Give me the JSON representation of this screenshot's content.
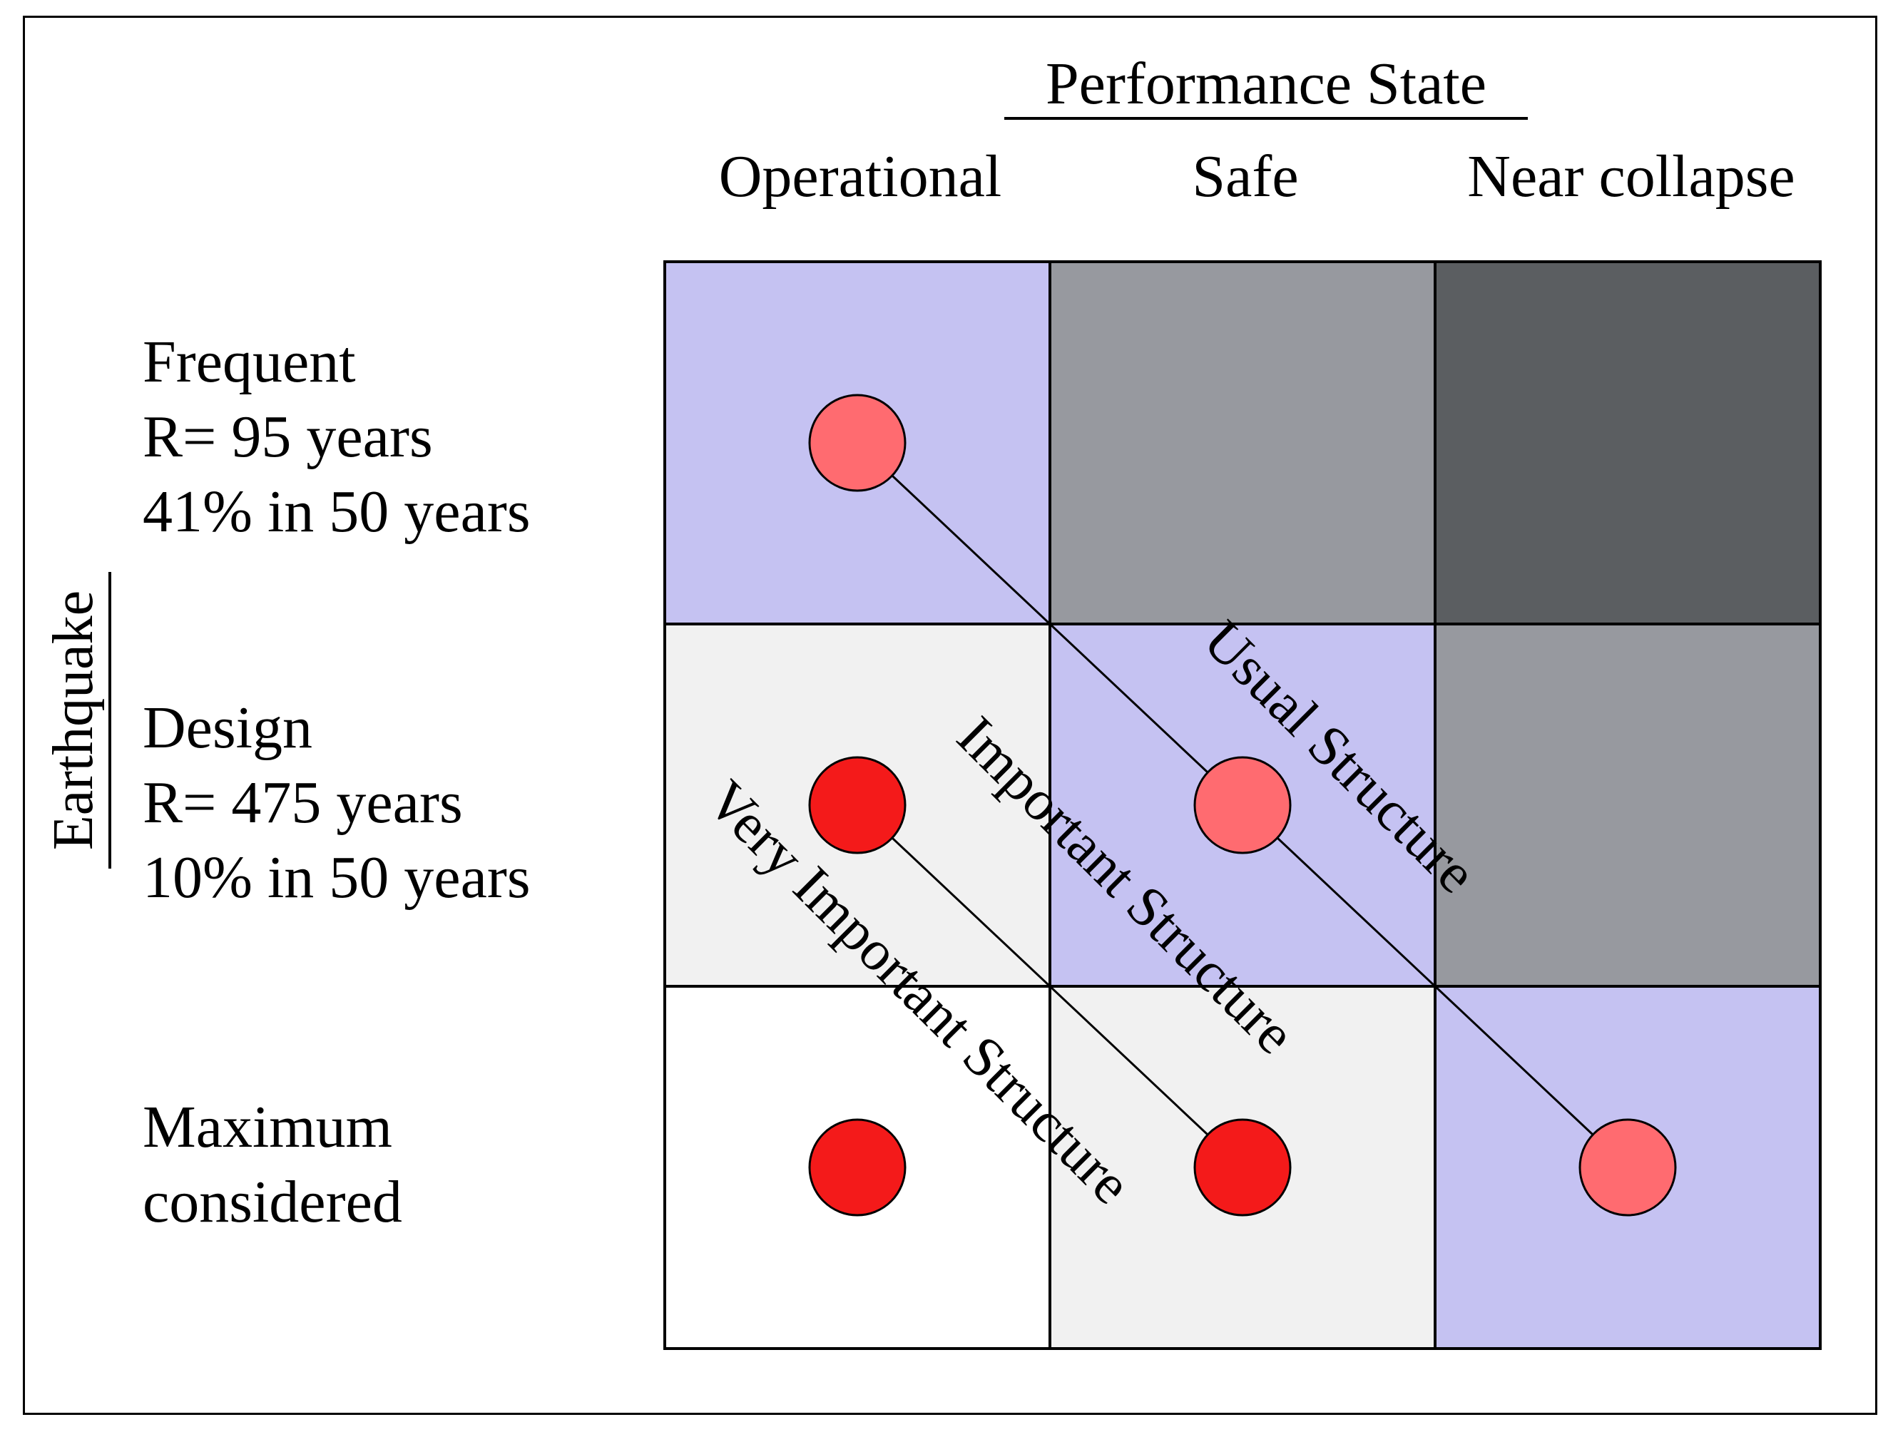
{
  "title": "Performance State",
  "columns": [
    "Operational",
    "Safe",
    "Near collapse"
  ],
  "axis_label": "Earthquake",
  "rows": [
    {
      "lines": [
        "Frequent",
        "R= 95 years",
        "41% in 50 years"
      ]
    },
    {
      "lines": [
        "Design",
        "R= 475 years",
        "10% in 50 years"
      ]
    },
    {
      "lines": [
        "Maximum",
        "considered"
      ]
    }
  ],
  "cell_colors": [
    [
      "#c5c2f2",
      "#97999f",
      "#5b5e61"
    ],
    [
      "#f1f1f1",
      "#c5c2f2",
      "#97999f"
    ],
    [
      "#ffffff",
      "#f1f1f1",
      "#c5c2f2"
    ]
  ],
  "dot_colors": {
    "light": "#ff6b70",
    "dark": "#f41a1a"
  },
  "series": [
    {
      "name": "usual-structure",
      "label": "Usual Structure",
      "dot": "light",
      "cells": [
        [
          0,
          0
        ],
        [
          1,
          1
        ],
        [
          2,
          2
        ]
      ]
    },
    {
      "name": "important-structure",
      "label": "Important Structure",
      "dot": "dark",
      "cells": [
        [
          1,
          0
        ],
        [
          2,
          1
        ]
      ]
    },
    {
      "name": "very-important-structure",
      "label": "Very Important Structure",
      "dot": "dark",
      "cells": [
        [
          2,
          0
        ]
      ]
    }
  ]
}
